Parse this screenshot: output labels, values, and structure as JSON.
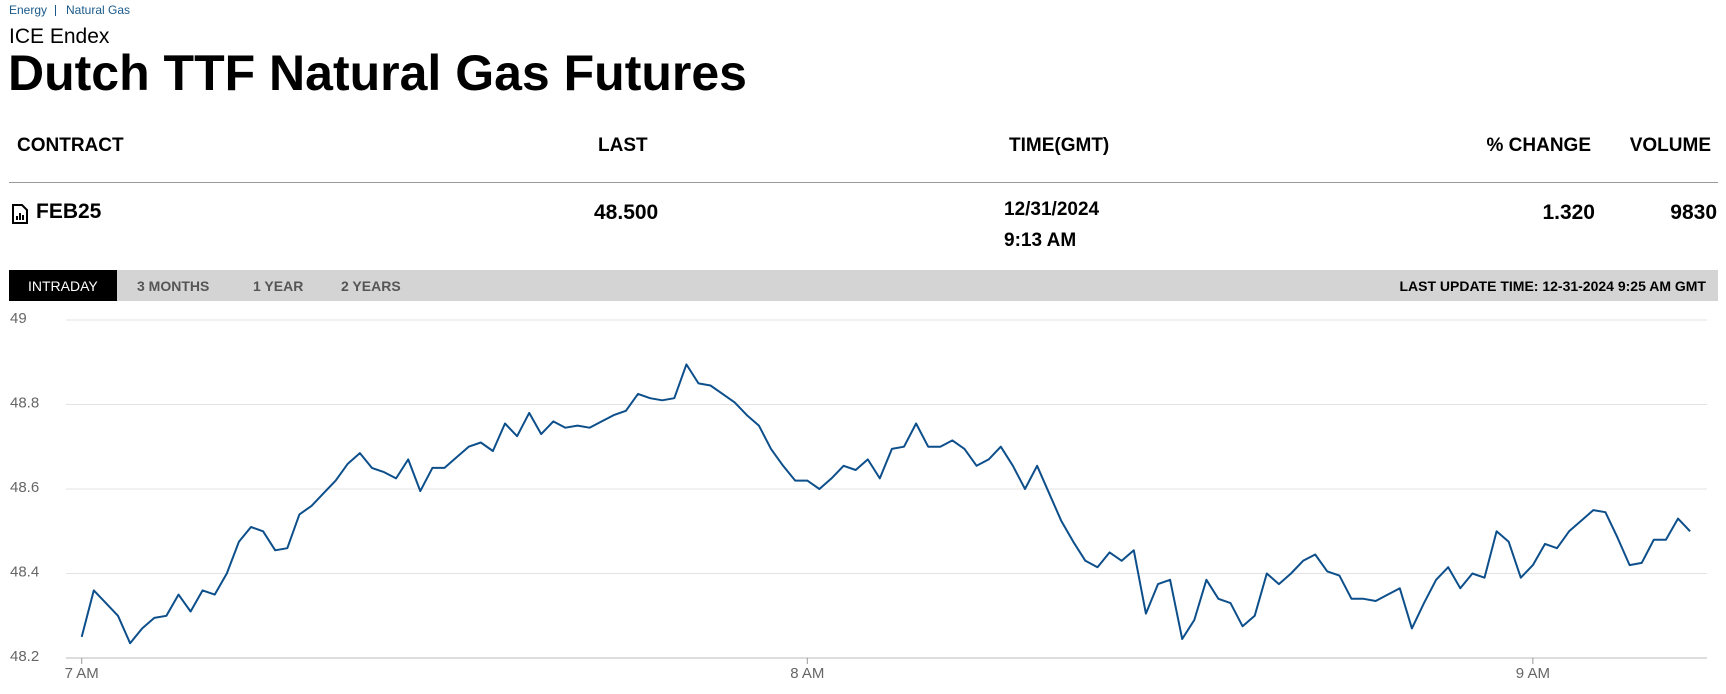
{
  "breadcrumb": [
    "Energy",
    "Natural Gas"
  ],
  "header": {
    "exchange": "ICE Endex",
    "title": "Dutch TTF Natural Gas Futures"
  },
  "table": {
    "columns": [
      "CONTRACT",
      "LAST",
      "TIME(GMT)",
      "% CHANGE",
      "VOLUME"
    ],
    "row": {
      "contract": "FEB25",
      "last": "48.500",
      "date": "12/31/2024",
      "time": "9:13 AM",
      "change": "1.320",
      "volume": "9830"
    }
  },
  "tabs": [
    "INTRADAY",
    "3 MONTHS",
    "1 YEAR",
    "2 YEARS"
  ],
  "last_update": "LAST UPDATE TIME: 12-31-2024 9:25 AM GMT",
  "chart_data": {
    "type": "line",
    "color": "#0d4f8b",
    "grid": true,
    "x": [
      0,
      1,
      2,
      3,
      4,
      5,
      6,
      7,
      8,
      9,
      10,
      11,
      12,
      13,
      14,
      15,
      16,
      17,
      18,
      19,
      20,
      21,
      22,
      23,
      24,
      25,
      26,
      27,
      28,
      29,
      30,
      31,
      32,
      33,
      34,
      35,
      36,
      37,
      38,
      39,
      40,
      41,
      42,
      43,
      44,
      45,
      46,
      47,
      48,
      49,
      50,
      51,
      52,
      53,
      54,
      55,
      56,
      57,
      58,
      59,
      60,
      61,
      62,
      63,
      64,
      65,
      66,
      67,
      68,
      69,
      70,
      71,
      72,
      73,
      74,
      75,
      76,
      77,
      78,
      79,
      80,
      81,
      82,
      83,
      84,
      85,
      86,
      87,
      88,
      89,
      90,
      91,
      92,
      93,
      94,
      95,
      96,
      97,
      98,
      99,
      100,
      101,
      102,
      103,
      104,
      105,
      106,
      107,
      108,
      109,
      110,
      111,
      112,
      113,
      114,
      115,
      116,
      117,
      118,
      119,
      120,
      121,
      122,
      123,
      124,
      125,
      126,
      127,
      128,
      129,
      130,
      131,
      132,
      133
    ],
    "values": [
      48.25,
      48.36,
      48.33,
      48.3,
      48.235,
      48.27,
      48.295,
      48.3,
      48.35,
      48.31,
      48.36,
      48.35,
      48.4,
      48.475,
      48.51,
      48.5,
      48.455,
      48.46,
      48.54,
      48.56,
      48.59,
      48.62,
      48.66,
      48.685,
      48.65,
      48.64,
      48.625,
      48.67,
      48.595,
      48.65,
      48.65,
      48.675,
      48.7,
      48.71,
      48.69,
      48.755,
      48.725,
      48.78,
      48.73,
      48.76,
      48.745,
      48.75,
      48.745,
      48.76,
      48.775,
      48.785,
      48.825,
      48.815,
      48.81,
      48.815,
      48.895,
      48.85,
      48.845,
      48.825,
      48.805,
      48.775,
      48.75,
      48.695,
      48.655,
      48.62,
      48.62,
      48.6,
      48.625,
      48.655,
      48.645,
      48.67,
      48.625,
      48.695,
      48.7,
      48.755,
      48.7,
      48.7,
      48.715,
      48.695,
      48.655,
      48.67,
      48.7,
      48.655,
      48.6,
      48.655,
      48.59,
      48.525,
      48.475,
      48.43,
      48.415,
      48.45,
      48.43,
      48.455,
      48.305,
      48.375,
      48.385,
      48.245,
      48.29,
      48.385,
      48.34,
      48.33,
      48.275,
      48.3,
      48.4,
      48.375,
      48.4,
      48.43,
      48.445,
      48.405,
      48.395,
      48.34,
      48.34,
      48.335,
      48.35,
      48.365,
      48.27,
      48.33,
      48.385,
      48.415,
      48.365,
      48.4,
      48.39,
      48.5,
      48.475,
      48.39,
      48.42,
      48.47,
      48.46,
      48.5,
      48.525,
      48.55,
      48.545,
      48.485,
      48.42,
      48.425,
      48.48,
      48.48,
      48.53,
      48.5
    ],
    "xlim": [
      -1.3,
      134.4
    ],
    "xticks": [
      {
        "value": 0,
        "label": "7 AM"
      },
      {
        "value": 60,
        "label": "8 AM"
      },
      {
        "value": 120,
        "label": "9 AM"
      }
    ],
    "ylim": [
      48.2,
      49
    ],
    "yticks": [
      48.2,
      48.4,
      48.6,
      48.8,
      49
    ]
  }
}
